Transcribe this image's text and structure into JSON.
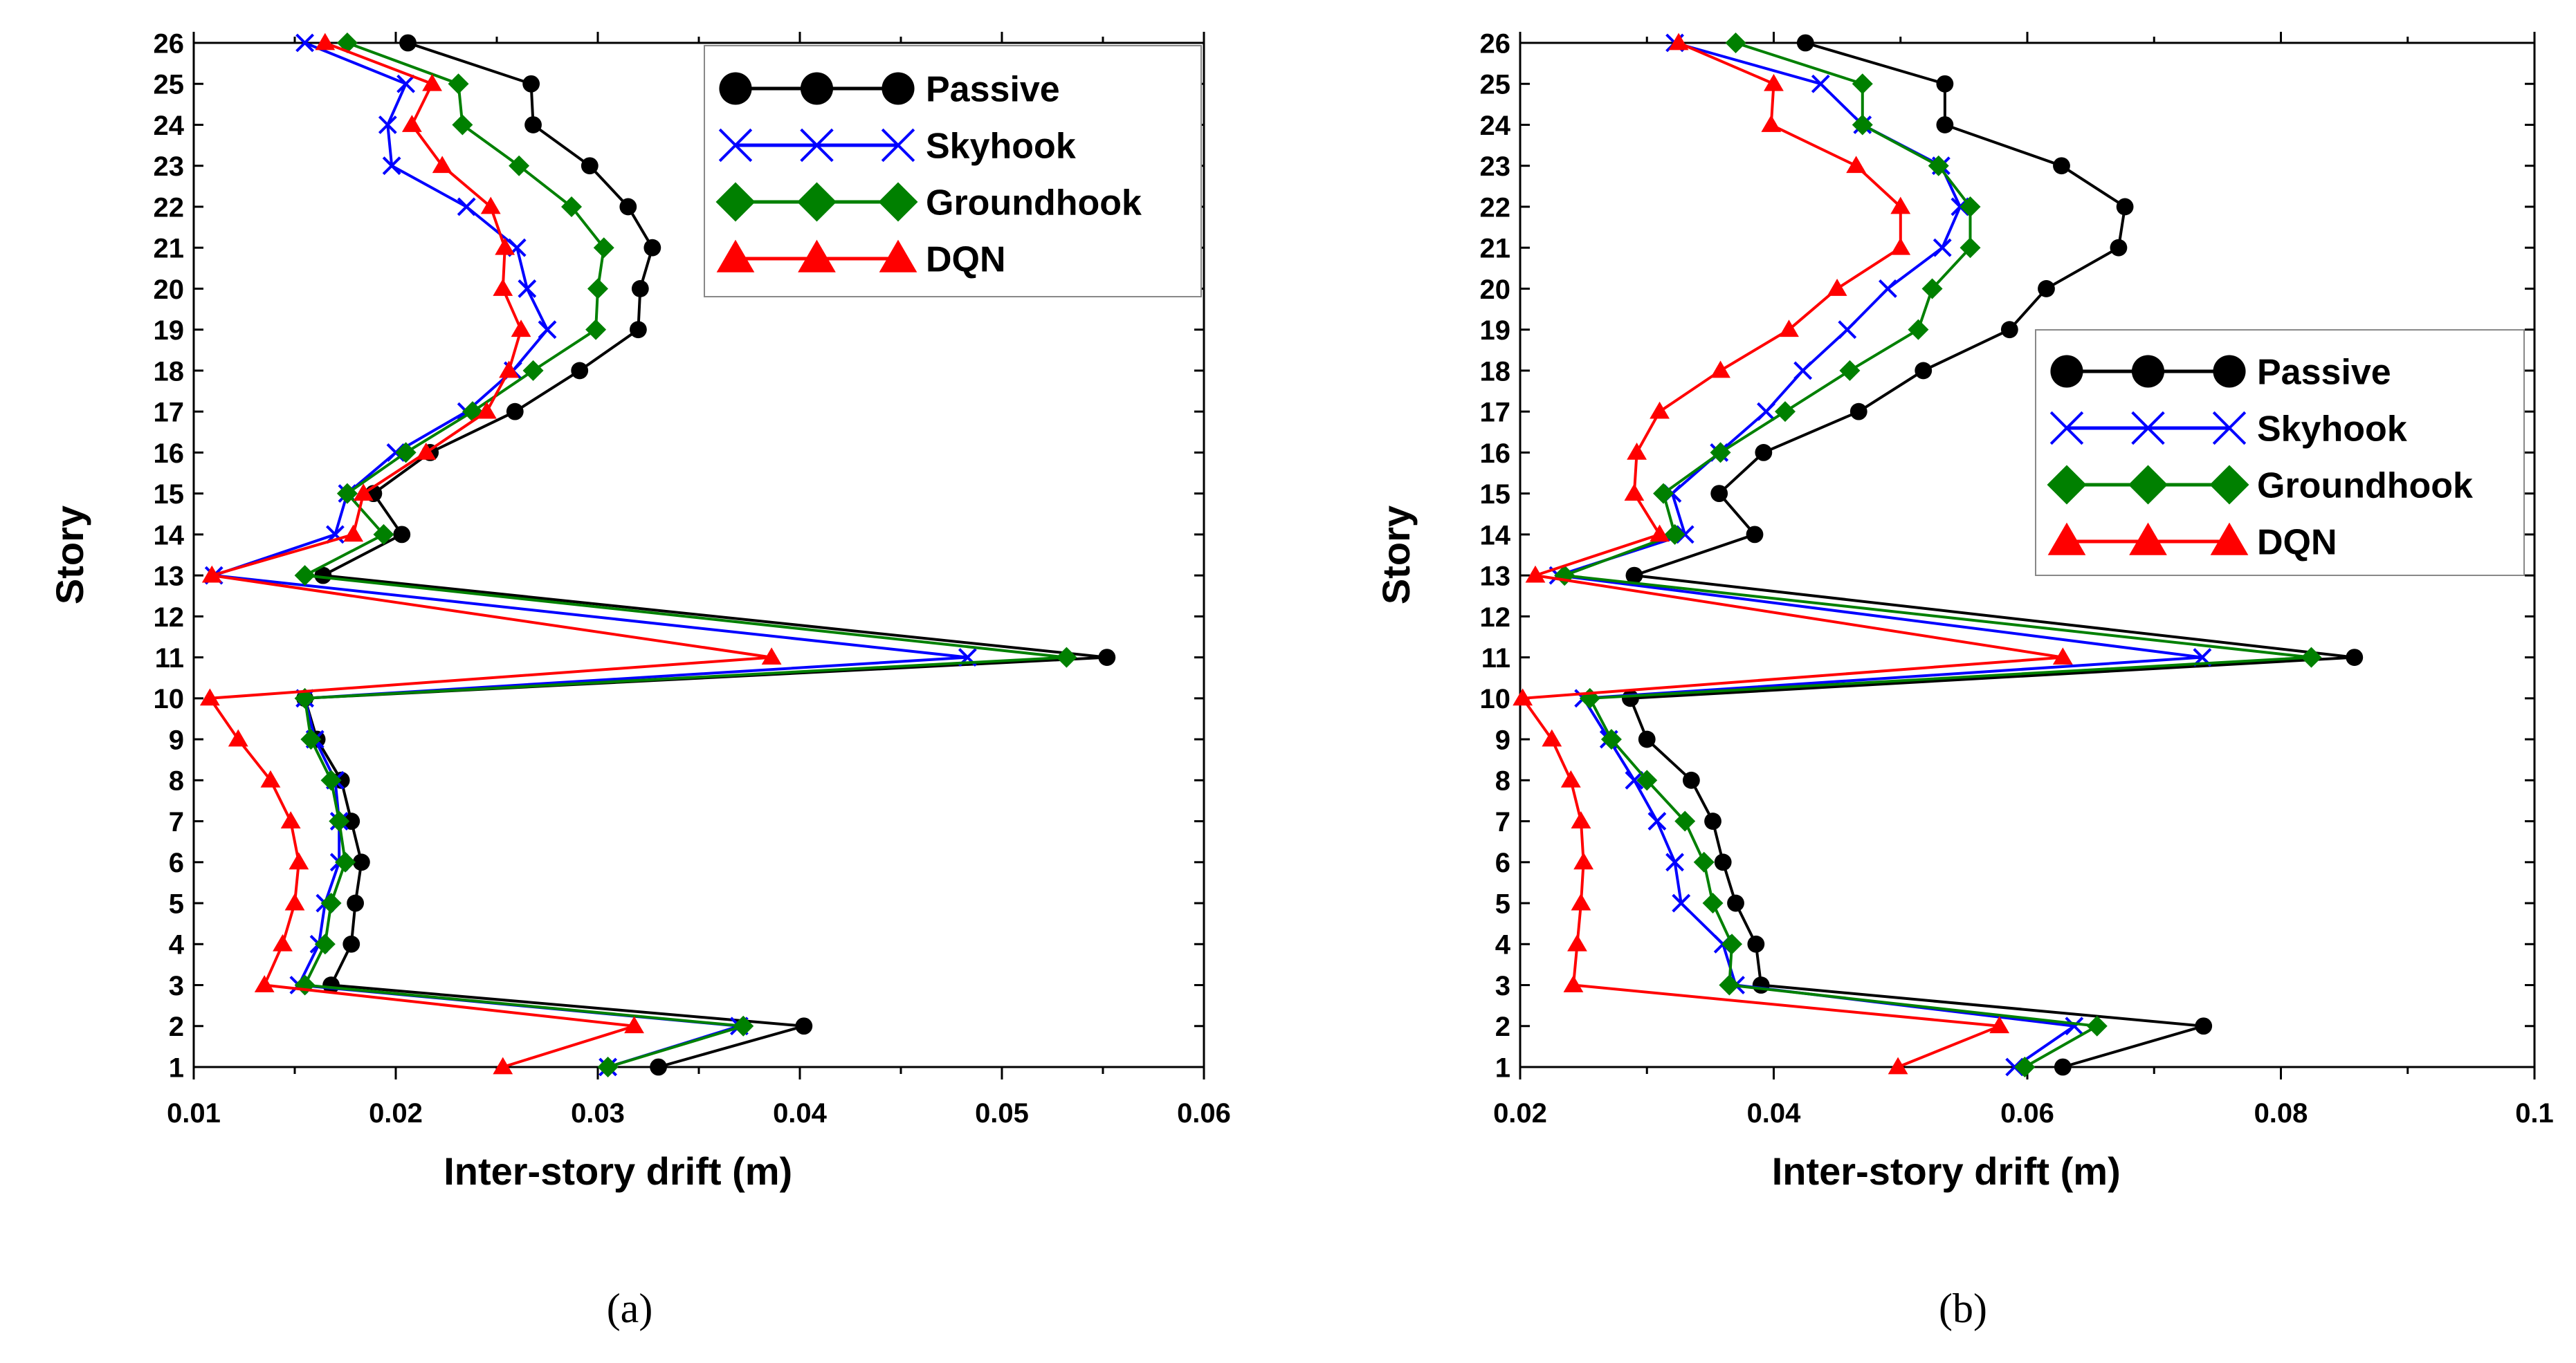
{
  "chart_data": [
    {
      "type": "line",
      "panel": "a",
      "caption": "(a)",
      "xlabel": "Inter-story drift (m)",
      "ylabel": "Story",
      "xlim": [
        0.01,
        0.06
      ],
      "ylim": [
        1,
        26
      ],
      "xticks": [
        0.01,
        0.02,
        0.03,
        0.04,
        0.05,
        0.06
      ],
      "xtick_labels": [
        "0.01",
        "0.02",
        "0.03",
        "0.04",
        "0.05",
        "0.06"
      ],
      "ytick_labels": [
        "1",
        "2",
        "3",
        "4",
        "5",
        "6",
        "7",
        "8",
        "9",
        "10",
        "11",
        "12",
        "13",
        "14",
        "15",
        "16",
        "17",
        "18",
        "19",
        "20",
        "21",
        "22",
        "23",
        "24",
        "25",
        "26"
      ],
      "legend_position": "top-right",
      "series": [
        {
          "name": "Passive",
          "color": "#000000",
          "marker": "circle",
          "stories": [
            1,
            2,
            3,
            4,
            5,
            6,
            7,
            8,
            9,
            10,
            11,
            13,
            14,
            15,
            16,
            17,
            18,
            19,
            20,
            21,
            22,
            23,
            24,
            25,
            26
          ],
          "values": [
            0.033,
            0.0402,
            0.0168,
            0.0178,
            0.018,
            0.0183,
            0.0178,
            0.0173,
            0.0161,
            0.0155,
            0.0552,
            0.0164,
            0.0203,
            0.0189,
            0.0217,
            0.0259,
            0.0291,
            0.032,
            0.0321,
            0.0327,
            0.0315,
            0.0296,
            0.0268,
            0.0267,
            0.0206
          ]
        },
        {
          "name": "Skyhook",
          "color": "#0000ff",
          "marker": "x",
          "stories": [
            1,
            2,
            3,
            4,
            5,
            6,
            7,
            8,
            9,
            10,
            11,
            13,
            14,
            15,
            16,
            17,
            18,
            19,
            20,
            21,
            22,
            23,
            24,
            25,
            26
          ],
          "values": [
            0.0305,
            0.037,
            0.0152,
            0.0162,
            0.0165,
            0.0172,
            0.0172,
            0.017,
            0.016,
            0.0155,
            0.0483,
            0.011,
            0.017,
            0.0176,
            0.02,
            0.0235,
            0.0258,
            0.0275,
            0.0265,
            0.026,
            0.0235,
            0.0198,
            0.0196,
            0.0205,
            0.0155
          ]
        },
        {
          "name": "Groundhook",
          "color": "#008000",
          "marker": "diamond",
          "stories": [
            1,
            2,
            3,
            4,
            5,
            6,
            7,
            8,
            9,
            10,
            11,
            13,
            14,
            15,
            16,
            17,
            18,
            19,
            20,
            21,
            22,
            23,
            24,
            25,
            26
          ],
          "values": [
            0.0305,
            0.0372,
            0.0155,
            0.0165,
            0.0168,
            0.0175,
            0.0172,
            0.0168,
            0.0158,
            0.0155,
            0.0532,
            0.0155,
            0.0194,
            0.0176,
            0.0205,
            0.0238,
            0.0268,
            0.0299,
            0.03,
            0.0303,
            0.0287,
            0.0261,
            0.0233,
            0.0231,
            0.0176
          ]
        },
        {
          "name": "DQN",
          "color": "#ff0000",
          "marker": "triangle",
          "stories": [
            1,
            2,
            3,
            4,
            5,
            6,
            7,
            8,
            9,
            10,
            11,
            13,
            14,
            15,
            16,
            17,
            18,
            19,
            20,
            21,
            22,
            23,
            24,
            25,
            26
          ],
          "values": [
            0.0253,
            0.0318,
            0.0135,
            0.0144,
            0.015,
            0.0152,
            0.0148,
            0.0138,
            0.0122,
            0.0108,
            0.0386,
            0.0109,
            0.0179,
            0.0184,
            0.0215,
            0.0245,
            0.0256,
            0.0262,
            0.0253,
            0.0254,
            0.0247,
            0.0223,
            0.0208,
            0.0218,
            0.0165
          ]
        }
      ]
    },
    {
      "type": "line",
      "panel": "b",
      "caption": "(b)",
      "xlabel": "Inter-story drift (m)",
      "ylabel": "Story",
      "xlim": [
        0.02,
        0.1
      ],
      "ylim": [
        1,
        26
      ],
      "xticks": [
        0.02,
        0.04,
        0.06,
        0.08,
        0.1
      ],
      "xtick_labels": [
        "0.02",
        "0.04",
        "0.06",
        "0.08",
        "0.1"
      ],
      "ytick_labels": [
        "1",
        "2",
        "3",
        "4",
        "5",
        "6",
        "7",
        "8",
        "9",
        "10",
        "11",
        "12",
        "13",
        "14",
        "15",
        "16",
        "17",
        "18",
        "19",
        "20",
        "21",
        "22",
        "23",
        "24",
        "25",
        "26"
      ],
      "legend_position": "middle-right",
      "series": [
        {
          "name": "Passive",
          "color": "#000000",
          "marker": "circle",
          "stories": [
            1,
            2,
            3,
            4,
            5,
            6,
            7,
            8,
            9,
            10,
            11,
            13,
            14,
            15,
            16,
            17,
            18,
            19,
            20,
            21,
            22,
            23,
            24,
            25,
            26
          ],
          "values": [
            0.0628,
            0.0739,
            0.039,
            0.0386,
            0.037,
            0.036,
            0.0352,
            0.0335,
            0.03,
            0.0287,
            0.0858,
            0.029,
            0.0385,
            0.0357,
            0.0392,
            0.0467,
            0.0518,
            0.0586,
            0.0615,
            0.0672,
            0.0677,
            0.0627,
            0.0535,
            0.0535,
            0.0425
          ]
        },
        {
          "name": "Skyhook",
          "color": "#0000ff",
          "marker": "x",
          "stories": [
            1,
            2,
            3,
            4,
            5,
            6,
            7,
            8,
            9,
            10,
            11,
            13,
            14,
            15,
            16,
            17,
            18,
            19,
            20,
            21,
            22,
            23,
            24,
            25,
            26
          ],
          "values": [
            0.059,
            0.0637,
            0.037,
            0.036,
            0.0327,
            0.0322,
            0.0308,
            0.029,
            0.027,
            0.025,
            0.0738,
            0.023,
            0.033,
            0.032,
            0.0357,
            0.0394,
            0.0423,
            0.0458,
            0.049,
            0.0533,
            0.0547,
            0.0532,
            0.047,
            0.0437,
            0.0322
          ]
        },
        {
          "name": "Groundhook",
          "color": "#008000",
          "marker": "diamond",
          "stories": [
            1,
            2,
            3,
            4,
            5,
            6,
            7,
            8,
            9,
            10,
            11,
            13,
            14,
            15,
            16,
            17,
            18,
            19,
            20,
            21,
            22,
            23,
            24,
            25,
            26
          ],
          "values": [
            0.0598,
            0.0655,
            0.0365,
            0.0367,
            0.0352,
            0.0345,
            0.033,
            0.03,
            0.0272,
            0.0255,
            0.0824,
            0.0235,
            0.0322,
            0.0313,
            0.0358,
            0.0409,
            0.046,
            0.0514,
            0.0525,
            0.0555,
            0.0555,
            0.053,
            0.047,
            0.047,
            0.037
          ]
        },
        {
          "name": "DQN",
          "color": "#ff0000",
          "marker": "triangle",
          "stories": [
            1,
            2,
            3,
            4,
            5,
            6,
            7,
            8,
            9,
            10,
            11,
            13,
            14,
            15,
            16,
            17,
            18,
            19,
            20,
            21,
            22,
            23,
            24,
            25,
            26
          ],
          "values": [
            0.0498,
            0.0578,
            0.0242,
            0.0245,
            0.0248,
            0.025,
            0.0248,
            0.024,
            0.0225,
            0.0202,
            0.0628,
            0.0212,
            0.031,
            0.029,
            0.0292,
            0.031,
            0.0358,
            0.0412,
            0.045,
            0.05,
            0.05,
            0.0465,
            0.0398,
            0.04,
            0.0325
          ]
        }
      ]
    }
  ]
}
